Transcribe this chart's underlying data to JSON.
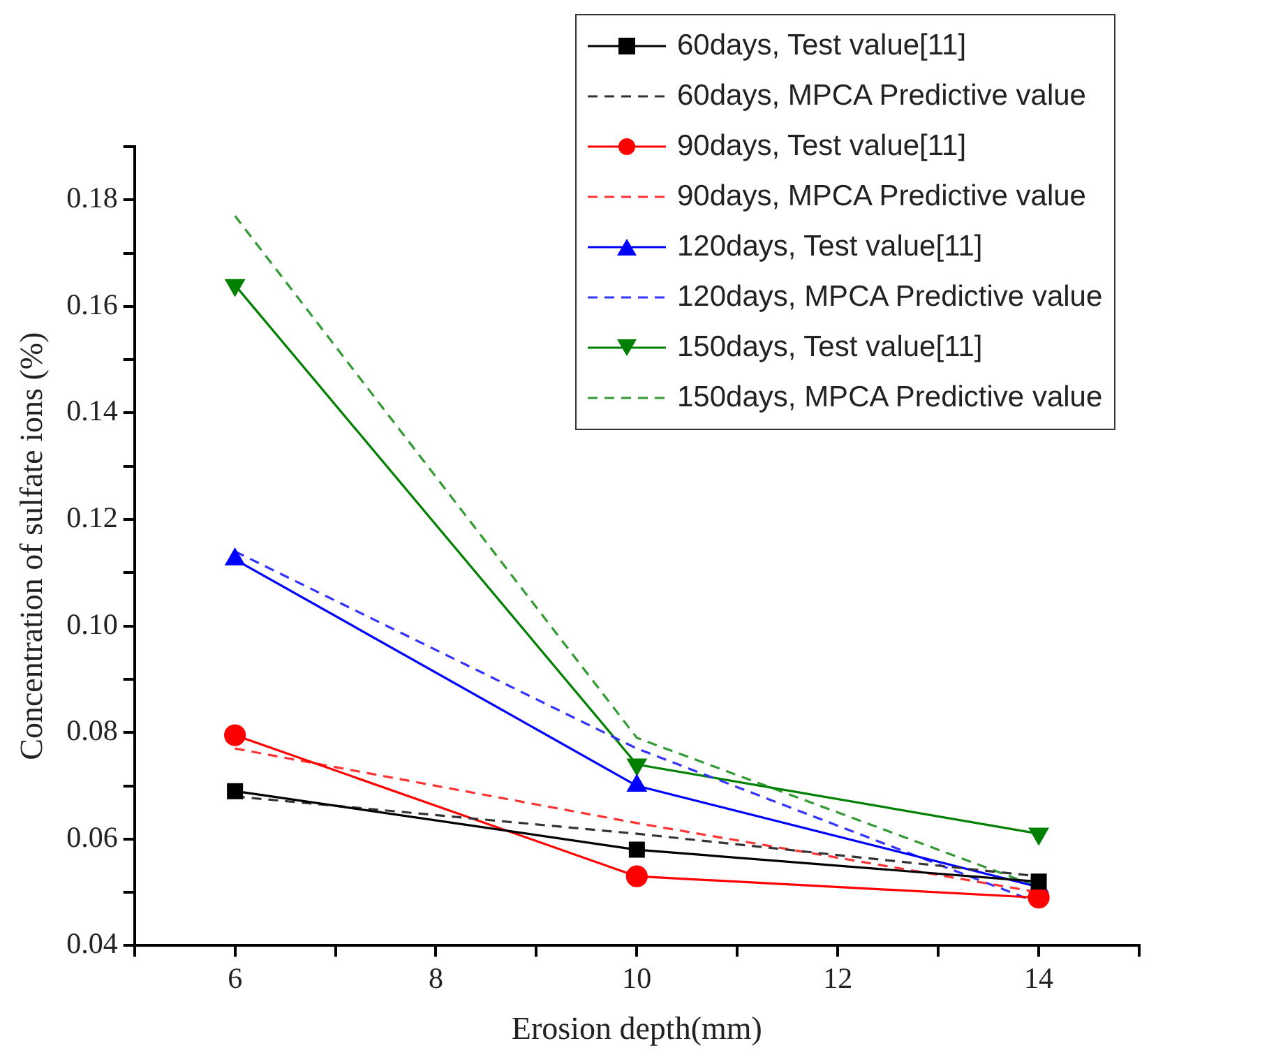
{
  "chart_data": {
    "type": "line",
    "xlabel": "Erosion depth(mm)",
    "ylabel": "Concentration of sulfate ions (%)",
    "xlim": [
      5,
      15
    ],
    "xticks": [
      {
        "value": 5,
        "label": null
      },
      6,
      {
        "value": 7,
        "label": null
      },
      8,
      {
        "value": 9,
        "label": null
      },
      10,
      {
        "value": 11,
        "label": null
      },
      12,
      {
        "value": 13,
        "label": null
      },
      14,
      {
        "value": 15,
        "label": null
      }
    ],
    "ylim": [
      0.04,
      0.19
    ],
    "yticks": [
      {
        "value": 0.04,
        "label": "0.04"
      },
      {
        "value": 0.05,
        "label": null
      },
      {
        "value": 0.06,
        "label": "0.06"
      },
      {
        "value": 0.07,
        "label": null
      },
      {
        "value": 0.08,
        "label": "0.08"
      },
      {
        "value": 0.09,
        "label": null
      },
      {
        "value": 0.1,
        "label": "0.10"
      },
      {
        "value": 0.11,
        "label": null
      },
      {
        "value": 0.12,
        "label": "0.12"
      },
      {
        "value": 0.13,
        "label": null
      },
      {
        "value": 0.14,
        "label": "0.14"
      },
      {
        "value": 0.15,
        "label": null
      },
      {
        "value": 0.16,
        "label": "0.16"
      },
      {
        "value": 0.17,
        "label": null
      },
      {
        "value": 0.18,
        "label": "0.18"
      },
      {
        "value": 0.19,
        "label": null
      }
    ],
    "grid": false,
    "legend": "top right",
    "x": [
      6,
      10,
      14
    ],
    "series": [
      {
        "name": "60days, Test value[11]",
        "color": "#000000",
        "values": [
          0.069,
          0.058,
          0.052
        ],
        "marker": "square",
        "line_style": "solid"
      },
      {
        "name": "60days, MPCA Predictive value",
        "color": "#333333",
        "values": [
          0.068,
          0.061,
          0.053
        ],
        "marker": "none",
        "line_style": "dashed"
      },
      {
        "name": "90days, Test value[11]",
        "color": "#ff0000",
        "values": [
          0.0795,
          0.053,
          0.049
        ],
        "marker": "circle",
        "line_style": "solid"
      },
      {
        "name": "90days, MPCA Predictive value",
        "color": "#ff3333",
        "values": [
          0.077,
          0.063,
          0.05
        ],
        "marker": "none",
        "line_style": "dashed"
      },
      {
        "name": "120days, Test value[11]",
        "color": "#0000ff",
        "values": [
          0.1125,
          0.07,
          0.051
        ],
        "marker": "triangle",
        "line_style": "solid"
      },
      {
        "name": "120days, MPCA Predictive value",
        "color": "#3333ff",
        "values": [
          0.114,
          0.077,
          0.048
        ],
        "marker": "none",
        "line_style": "dashed"
      },
      {
        "name": "150days, Test value[11]",
        "color": "#008000",
        "values": [
          0.164,
          0.074,
          0.061
        ],
        "marker": "triangle-down",
        "line_style": "solid"
      },
      {
        "name": "150days, MPCA Predictive value",
        "color": "#339933",
        "values": [
          0.177,
          0.079,
          0.051
        ],
        "marker": "none",
        "line_style": "dashed"
      }
    ]
  }
}
